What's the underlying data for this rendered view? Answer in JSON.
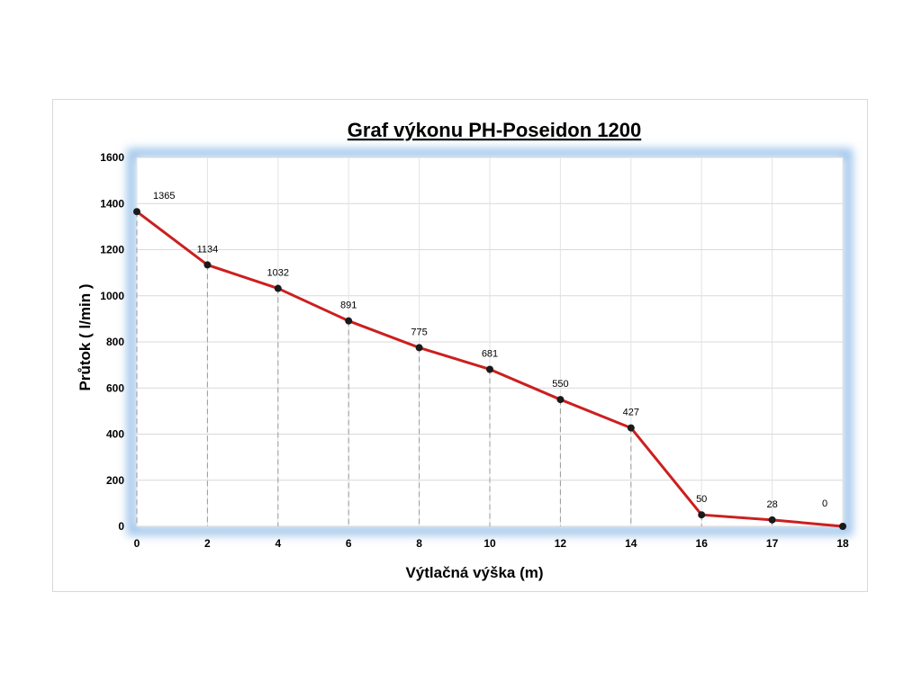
{
  "chart_data": {
    "type": "line",
    "title": "Graf výkonu PH-Poseidon 1200",
    "xlabel": "Výtlačná výška (m)",
    "ylabel": "Průtok  ( l/min )",
    "x": [
      "0",
      "2",
      "4",
      "6",
      "8",
      "10",
      "12",
      "14",
      "16",
      "17",
      "18"
    ],
    "values": [
      1365,
      1134,
      1032,
      891,
      775,
      681,
      550,
      427,
      50,
      28,
      0
    ],
    "data_labels": [
      "1365",
      "1134",
      "1032",
      "891",
      "775",
      "681",
      "550",
      "427",
      "50",
      "28",
      "0"
    ],
    "y_ticks": [
      "0",
      "200",
      "400",
      "600",
      "800",
      "1000",
      "1200",
      "1400",
      "1600"
    ],
    "ylim": [
      0,
      1600
    ],
    "grid": true,
    "drop_lines": true,
    "line_color": "#cc1f1f",
    "marker_color": "#1a1a1a",
    "plot_glow_color": "#9cc3ea"
  }
}
